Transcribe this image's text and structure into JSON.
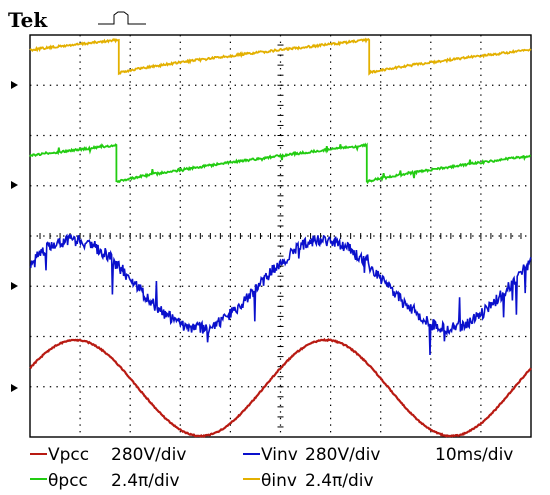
{
  "brand": "Tek",
  "trigger_symbol": "trigger-pulse-icon",
  "colors": {
    "background": "#ffffff",
    "grid": "#000000",
    "theta_inv": "#e3b000",
    "theta_pcc": "#22cc11",
    "v_inv": "#0a10cc",
    "v_pcc": "#b81a12",
    "legend_text": "#000000"
  },
  "legend": {
    "vpcc": {
      "label": "Vpcc",
      "scale": "280V/div"
    },
    "vinv": {
      "label": "Vinv",
      "scale": "280V/div"
    },
    "time": "10ms/div",
    "thpcc": {
      "label": "θpcc",
      "scale": "2.4π/div"
    },
    "thinv": {
      "label": "θinv",
      "scale": "2.4π/div"
    }
  },
  "chart_data": {
    "type": "line",
    "time_per_div_ms": 10,
    "horizontal_divisions": 10,
    "vertical_divisions": 8,
    "frequency_hz": 20,
    "grid": true,
    "series": [
      {
        "name": "θinv",
        "color": "#e3b000",
        "kind": "sawtooth",
        "scale": "2.4π/div"
      },
      {
        "name": "θpcc",
        "color": "#22cc11",
        "kind": "sawtooth",
        "scale": "2.4π/div"
      },
      {
        "name": "Vinv",
        "color": "#0a10cc",
        "kind": "sine",
        "scale": "280V/div"
      },
      {
        "name": "Vpcc",
        "color": "#b81a12",
        "kind": "sine",
        "scale": "280V/div"
      }
    ]
  }
}
